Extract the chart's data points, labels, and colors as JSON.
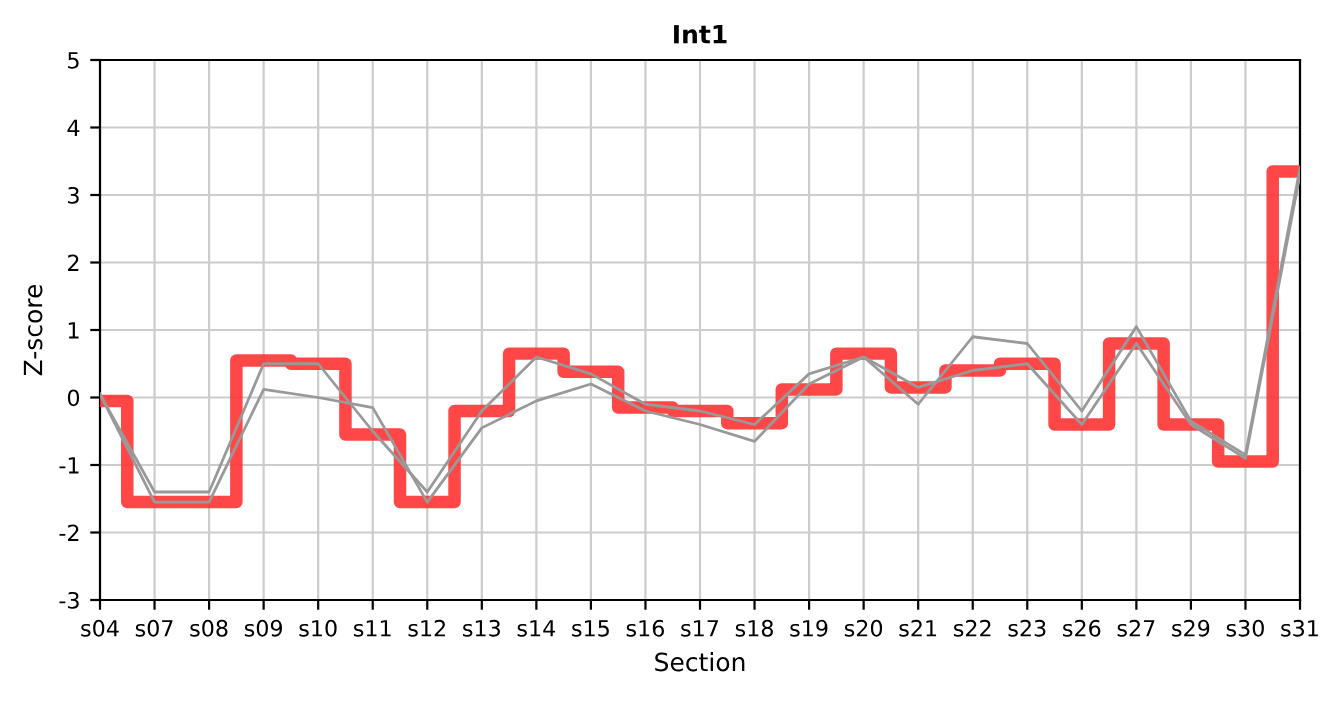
{
  "chart_data": {
    "type": "line",
    "title": "Int1",
    "xlabel": "Section",
    "ylabel": "Z-score",
    "categories": [
      "s04",
      "s07",
      "s08",
      "s09",
      "s10",
      "s11",
      "s12",
      "s13",
      "s14",
      "s15",
      "s16",
      "s17",
      "s18",
      "s19",
      "s20",
      "s21",
      "s22",
      "s23",
      "s26",
      "s27",
      "s29",
      "s30",
      "s31"
    ],
    "series": [
      {
        "color": "#999999",
        "values": [
          0.05,
          -1.4,
          -1.4,
          0.5,
          0.5,
          -0.5,
          -1.4,
          -0.2,
          0.6,
          0.35,
          -0.1,
          -0.2,
          -0.4,
          0.35,
          0.6,
          -0.1,
          0.9,
          0.8,
          -0.2,
          1.05,
          -0.35,
          -0.85,
          3.4
        ]
      },
      {
        "color": "#999999",
        "values": [
          0.05,
          -1.55,
          -1.55,
          0.12,
          0.0,
          -0.15,
          -1.55,
          -0.45,
          -0.05,
          0.2,
          -0.2,
          -0.4,
          -0.65,
          0.2,
          0.6,
          0.15,
          0.4,
          0.5,
          -0.4,
          0.8,
          -0.4,
          -0.9,
          3.3
        ]
      },
      {
        "type": "step",
        "color": "#ff3333",
        "values": [
          -0.05,
          -1.55,
          -1.55,
          0.55,
          0.5,
          -0.55,
          -1.55,
          -0.2,
          0.65,
          0.38,
          -0.15,
          -0.2,
          -0.38,
          0.12,
          0.65,
          0.15,
          0.4,
          0.5,
          -0.4,
          0.8,
          -0.4,
          -0.95,
          3.35
        ]
      }
    ],
    "ylim": [
      -3,
      5
    ],
    "yticks": [
      -3,
      -2,
      -1,
      0,
      1,
      2,
      3,
      4,
      5
    ],
    "grid": true,
    "legend": false
  }
}
